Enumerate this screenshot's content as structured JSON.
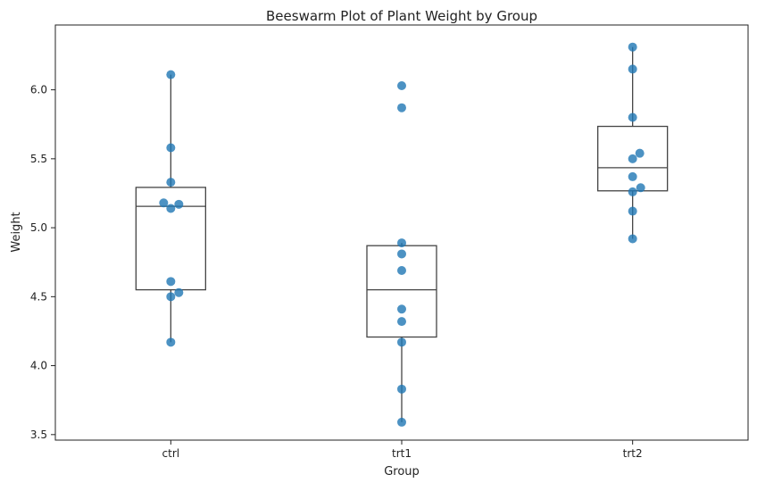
{
  "chart_data": {
    "type": "box+swarm",
    "title": "Beeswarm Plot of Plant Weight by Group",
    "xlabel": "Group",
    "ylabel": "Weight",
    "categories": [
      "ctrl",
      "trt1",
      "trt2"
    ],
    "ylim": [
      3.46,
      6.47
    ],
    "yticks": [
      3.5,
      4.0,
      4.5,
      5.0,
      5.5,
      6.0
    ],
    "ytick_labels": [
      "3.5",
      "4.0",
      "4.5",
      "5.0",
      "5.5",
      "6.0"
    ],
    "grid": false,
    "point_color": "#1f77b4",
    "box_color": "#444444",
    "series": [
      {
        "category": "ctrl",
        "values": [
          4.17,
          5.58,
          5.18,
          6.11,
          4.5,
          4.61,
          5.17,
          4.53,
          5.33,
          5.14
        ]
      },
      {
        "category": "trt1",
        "values": [
          4.81,
          4.17,
          4.41,
          3.59,
          5.87,
          3.83,
          6.03,
          4.89,
          4.32,
          4.69
        ]
      },
      {
        "category": "trt2",
        "values": [
          6.31,
          5.12,
          5.54,
          5.5,
          5.37,
          5.29,
          4.92,
          6.15,
          5.8,
          5.26
        ]
      }
    ]
  }
}
